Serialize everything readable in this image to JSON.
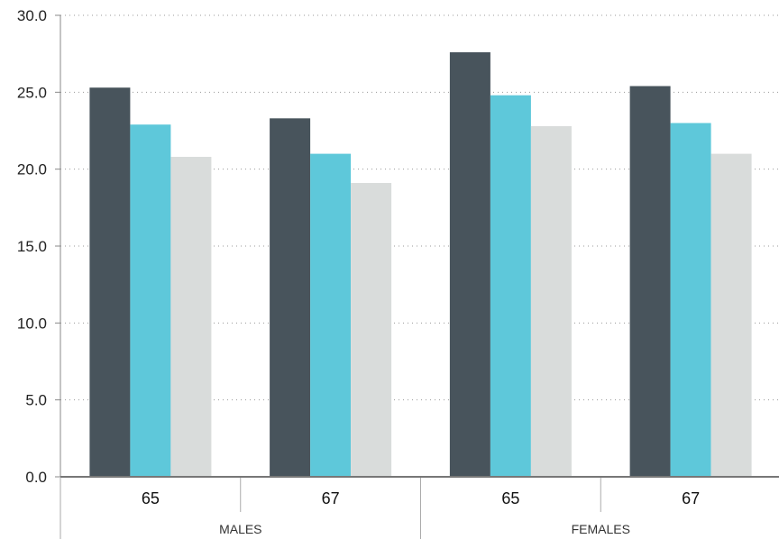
{
  "chart_data": {
    "type": "bar",
    "groups": [
      {
        "label": "MALES",
        "categories": [
          "65",
          "67"
        ]
      },
      {
        "label": "FEMALES",
        "categories": [
          "65",
          "67"
        ]
      }
    ],
    "categories": [
      "65",
      "67",
      "65",
      "67"
    ],
    "series": [
      {
        "color": "#48545c",
        "values": [
          25.3,
          23.3,
          27.6,
          25.4
        ]
      },
      {
        "color": "#5ec8da",
        "values": [
          22.9,
          21.0,
          24.8,
          23.0
        ]
      },
      {
        "color": "#d9dcdb",
        "values": [
          20.8,
          19.1,
          22.8,
          21.0
        ]
      }
    ],
    "yticks": [
      "0.0",
      "5.0",
      "10.0",
      "15.0",
      "20.0",
      "25.0",
      "30.0"
    ],
    "ylim": [
      0,
      30
    ],
    "grid": true,
    "title": "",
    "xlabel": "",
    "ylabel": ""
  }
}
